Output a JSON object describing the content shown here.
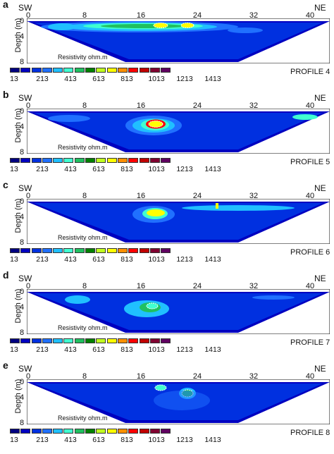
{
  "axis": {
    "left": "SW",
    "right": "NE",
    "ylabel": "Depth (m)",
    "xticks": [
      "0",
      "8",
      "16",
      "24",
      "32",
      "40"
    ],
    "yticks": [
      "0",
      "4",
      "8"
    ]
  },
  "legend": {
    "title": "Resistivity ohm.m",
    "labels": [
      "13",
      "213",
      "413",
      "613",
      "813",
      "1013",
      "1213",
      "1413"
    ],
    "colors": [
      "#000080",
      "#0000c0",
      "#0030e0",
      "#2070ff",
      "#20c0ff",
      "#40ffd0",
      "#20c060",
      "#008000",
      "#c0ff20",
      "#ffff00",
      "#ff9000",
      "#ff0000",
      "#c00000",
      "#800030",
      "#600060"
    ]
  },
  "panels": [
    {
      "letter": "a",
      "profile": "PROFILE 4"
    },
    {
      "letter": "b",
      "profile": "PROFILE 5"
    },
    {
      "letter": "c",
      "profile": "PROFILE 6"
    },
    {
      "letter": "d",
      "profile": "PROFILE 7"
    },
    {
      "letter": "e",
      "profile": "PROFILE 8"
    }
  ]
}
